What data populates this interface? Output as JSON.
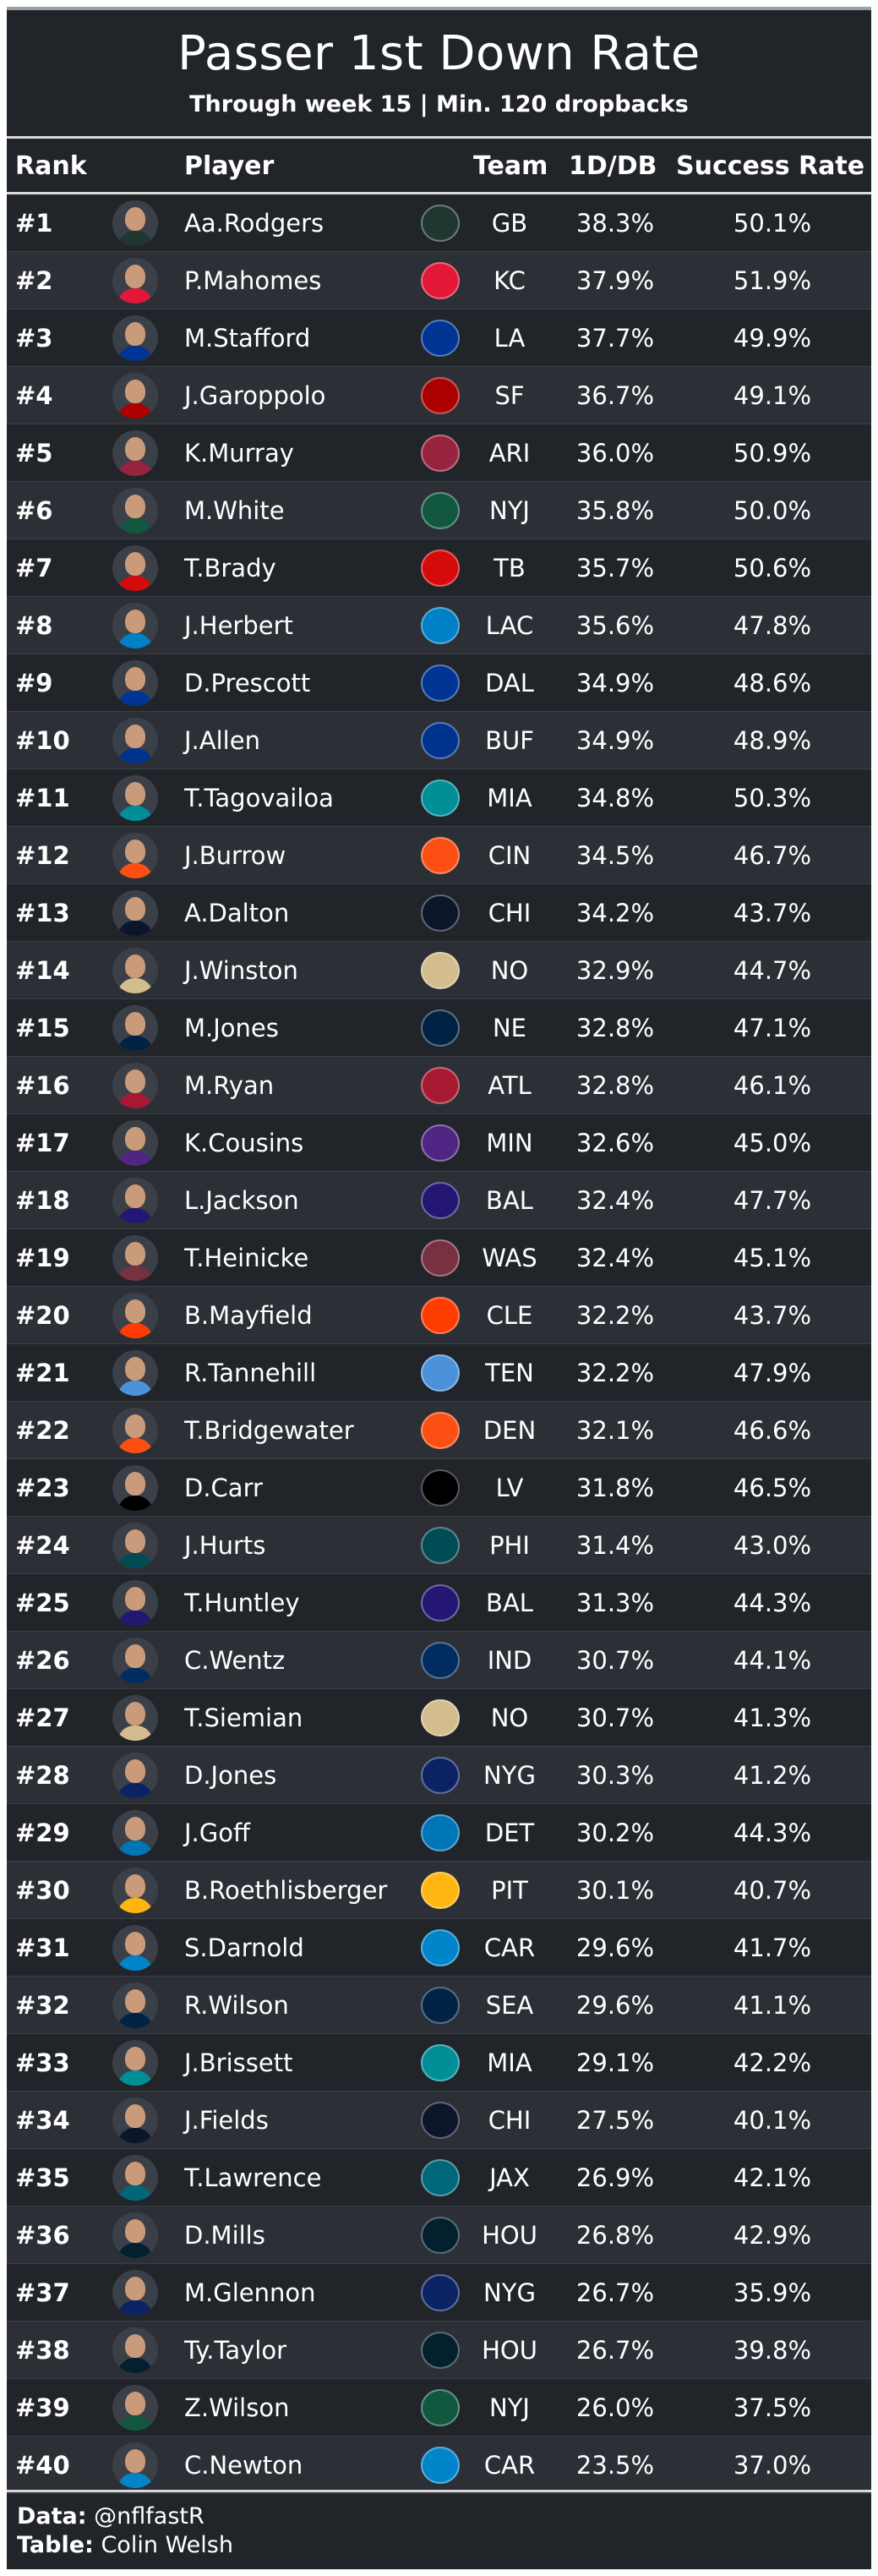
{
  "header": {
    "title": "Passer 1st Down Rate",
    "subtitle": "Through week 15 | Min. 120 dropbacks"
  },
  "columns": {
    "rank": "Rank",
    "player": "Player",
    "team": "Team",
    "rate": "1D/DB",
    "success": "Success Rate"
  },
  "footer": {
    "data_label": "Data:",
    "data_value": "@nflfastR",
    "table_label": "Table:",
    "table_value": "Colin Welsh"
  },
  "colors": {
    "background": "#212429",
    "row_alt": "#2c3036",
    "text": "#ffffff",
    "divider": "#d9d9d9"
  },
  "chart_data": {
    "type": "table",
    "title": "Passer 1st Down Rate",
    "subtitle": "Through week 15 | Min. 120 dropbacks",
    "columns": [
      "Rank",
      "Player",
      "Team",
      "1D/DB",
      "Success Rate"
    ],
    "rows": [
      {
        "rank": "#1",
        "player": "Aa.Rodgers",
        "team": "GB",
        "rate": "38.3%",
        "success": "50.1%",
        "team_color": "#203731"
      },
      {
        "rank": "#2",
        "player": "P.Mahomes",
        "team": "KC",
        "rate": "37.9%",
        "success": "51.9%",
        "team_color": "#E31837"
      },
      {
        "rank": "#3",
        "player": "M.Stafford",
        "team": "LA",
        "rate": "37.7%",
        "success": "49.9%",
        "team_color": "#003594"
      },
      {
        "rank": "#4",
        "player": "J.Garoppolo",
        "team": "SF",
        "rate": "36.7%",
        "success": "49.1%",
        "team_color": "#AA0000"
      },
      {
        "rank": "#5",
        "player": "K.Murray",
        "team": "ARI",
        "rate": "36.0%",
        "success": "50.9%",
        "team_color": "#97233F"
      },
      {
        "rank": "#6",
        "player": "M.White",
        "team": "NYJ",
        "rate": "35.8%",
        "success": "50.0%",
        "team_color": "#125740"
      },
      {
        "rank": "#7",
        "player": "T.Brady",
        "team": "TB",
        "rate": "35.7%",
        "success": "50.6%",
        "team_color": "#D50A0A"
      },
      {
        "rank": "#8",
        "player": "J.Herbert",
        "team": "LAC",
        "rate": "35.6%",
        "success": "47.8%",
        "team_color": "#0080C6"
      },
      {
        "rank": "#9",
        "player": "D.Prescott",
        "team": "DAL",
        "rate": "34.9%",
        "success": "48.6%",
        "team_color": "#003594"
      },
      {
        "rank": "#10",
        "player": "J.Allen",
        "team": "BUF",
        "rate": "34.9%",
        "success": "48.9%",
        "team_color": "#00338D"
      },
      {
        "rank": "#11",
        "player": "T.Tagovailoa",
        "team": "MIA",
        "rate": "34.8%",
        "success": "50.3%",
        "team_color": "#008E97"
      },
      {
        "rank": "#12",
        "player": "J.Burrow",
        "team": "CIN",
        "rate": "34.5%",
        "success": "46.7%",
        "team_color": "#FB4F14"
      },
      {
        "rank": "#13",
        "player": "A.Dalton",
        "team": "CHI",
        "rate": "34.2%",
        "success": "43.7%",
        "team_color": "#0B162A"
      },
      {
        "rank": "#14",
        "player": "J.Winston",
        "team": "NO",
        "rate": "32.9%",
        "success": "44.7%",
        "team_color": "#D3BC8D"
      },
      {
        "rank": "#15",
        "player": "M.Jones",
        "team": "NE",
        "rate": "32.8%",
        "success": "47.1%",
        "team_color": "#002244"
      },
      {
        "rank": "#16",
        "player": "M.Ryan",
        "team": "ATL",
        "rate": "32.8%",
        "success": "46.1%",
        "team_color": "#A71930"
      },
      {
        "rank": "#17",
        "player": "K.Cousins",
        "team": "MIN",
        "rate": "32.6%",
        "success": "45.0%",
        "team_color": "#4F2683"
      },
      {
        "rank": "#18",
        "player": "L.Jackson",
        "team": "BAL",
        "rate": "32.4%",
        "success": "47.7%",
        "team_color": "#241773"
      },
      {
        "rank": "#19",
        "player": "T.Heinicke",
        "team": "WAS",
        "rate": "32.4%",
        "success": "45.1%",
        "team_color": "#773141"
      },
      {
        "rank": "#20",
        "player": "B.Mayfield",
        "team": "CLE",
        "rate": "32.2%",
        "success": "43.7%",
        "team_color": "#FF3C00"
      },
      {
        "rank": "#21",
        "player": "R.Tannehill",
        "team": "TEN",
        "rate": "32.2%",
        "success": "47.9%",
        "team_color": "#4B92DB"
      },
      {
        "rank": "#22",
        "player": "T.Bridgewater",
        "team": "DEN",
        "rate": "32.1%",
        "success": "46.6%",
        "team_color": "#FB4F14"
      },
      {
        "rank": "#23",
        "player": "D.Carr",
        "team": "LV",
        "rate": "31.8%",
        "success": "46.5%",
        "team_color": "#000000"
      },
      {
        "rank": "#24",
        "player": "J.Hurts",
        "team": "PHI",
        "rate": "31.4%",
        "success": "43.0%",
        "team_color": "#004C54"
      },
      {
        "rank": "#25",
        "player": "T.Huntley",
        "team": "BAL",
        "rate": "31.3%",
        "success": "44.3%",
        "team_color": "#241773"
      },
      {
        "rank": "#26",
        "player": "C.Wentz",
        "team": "IND",
        "rate": "30.7%",
        "success": "44.1%",
        "team_color": "#002C5F"
      },
      {
        "rank": "#27",
        "player": "T.Siemian",
        "team": "NO",
        "rate": "30.7%",
        "success": "41.3%",
        "team_color": "#D3BC8D"
      },
      {
        "rank": "#28",
        "player": "D.Jones",
        "team": "NYG",
        "rate": "30.3%",
        "success": "41.2%",
        "team_color": "#0B2265"
      },
      {
        "rank": "#29",
        "player": "J.Goff",
        "team": "DET",
        "rate": "30.2%",
        "success": "44.3%",
        "team_color": "#0076B6"
      },
      {
        "rank": "#30",
        "player": "B.Roethlisberger",
        "team": "PIT",
        "rate": "30.1%",
        "success": "40.7%",
        "team_color": "#FFB612"
      },
      {
        "rank": "#31",
        "player": "S.Darnold",
        "team": "CAR",
        "rate": "29.6%",
        "success": "41.7%",
        "team_color": "#0085CA"
      },
      {
        "rank": "#32",
        "player": "R.Wilson",
        "team": "SEA",
        "rate": "29.6%",
        "success": "41.1%",
        "team_color": "#002244"
      },
      {
        "rank": "#33",
        "player": "J.Brissett",
        "team": "MIA",
        "rate": "29.1%",
        "success": "42.2%",
        "team_color": "#008E97"
      },
      {
        "rank": "#34",
        "player": "J.Fields",
        "team": "CHI",
        "rate": "27.5%",
        "success": "40.1%",
        "team_color": "#0B162A"
      },
      {
        "rank": "#35",
        "player": "T.Lawrence",
        "team": "JAX",
        "rate": "26.9%",
        "success": "42.1%",
        "team_color": "#006778"
      },
      {
        "rank": "#36",
        "player": "D.Mills",
        "team": "HOU",
        "rate": "26.8%",
        "success": "42.9%",
        "team_color": "#03202F"
      },
      {
        "rank": "#37",
        "player": "M.Glennon",
        "team": "NYG",
        "rate": "26.7%",
        "success": "35.9%",
        "team_color": "#0B2265"
      },
      {
        "rank": "#38",
        "player": "Ty.Taylor",
        "team": "HOU",
        "rate": "26.7%",
        "success": "39.8%",
        "team_color": "#03202F"
      },
      {
        "rank": "#39",
        "player": "Z.Wilson",
        "team": "NYJ",
        "rate": "26.0%",
        "success": "37.5%",
        "team_color": "#125740"
      },
      {
        "rank": "#40",
        "player": "C.Newton",
        "team": "CAR",
        "rate": "23.5%",
        "success": "37.0%",
        "team_color": "#0085CA"
      }
    ]
  }
}
